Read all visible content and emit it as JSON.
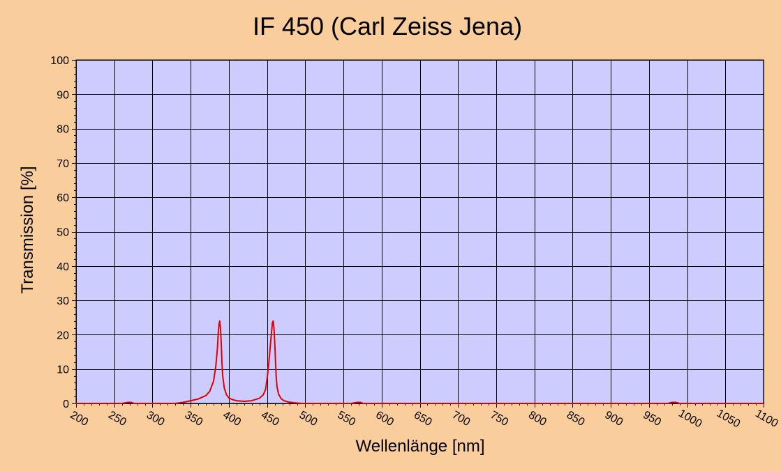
{
  "chart_data": {
    "type": "line",
    "title": "IF 450 (Carl Zeiss Jena)",
    "xlabel": "Wellenlänge [nm]",
    "ylabel": "Transmission [%]",
    "xlim": [
      200,
      1100
    ],
    "ylim": [
      0,
      100
    ],
    "x_ticks": [
      200,
      250,
      300,
      350,
      400,
      450,
      500,
      550,
      600,
      650,
      700,
      750,
      800,
      850,
      900,
      950,
      1000,
      1050,
      1100
    ],
    "x_tick_labels": [
      "200",
      "250",
      "300",
      "350",
      "400",
      "450",
      "500",
      "550",
      "600",
      "650",
      "700",
      "750",
      "800",
      "850",
      "900",
      "950",
      "1000",
      "1050",
      "1100"
    ],
    "y_ticks": [
      0,
      10,
      20,
      30,
      40,
      50,
      60,
      70,
      80,
      90,
      100
    ],
    "y_tick_labels": [
      "0",
      "10",
      "20",
      "30",
      "40",
      "50",
      "60",
      "70",
      "80",
      "90",
      "100"
    ],
    "grid": true,
    "plot_background": "#CCCCFF",
    "page_background": "#FACE9C",
    "grid_color": "#000000",
    "series": [
      {
        "color": "#E00000",
        "x": [
          200,
          260,
          268,
          272,
          276,
          330,
          340,
          350,
          360,
          370,
          375,
          380,
          383,
          385,
          386,
          387,
          388,
          389,
          390,
          391,
          392,
          394,
          397,
          400,
          405,
          410,
          420,
          430,
          440,
          445,
          448,
          450,
          452,
          454,
          456,
          457,
          458,
          459,
          460,
          461,
          462,
          463,
          465,
          468,
          472,
          478,
          485,
          495,
          560,
          568,
          572,
          576,
          975,
          980,
          985,
          990,
          1100
        ],
        "y": [
          0,
          0,
          0.3,
          0.3,
          0,
          0,
          0.3,
          0.8,
          1.3,
          2.3,
          3.5,
          6.5,
          11,
          16,
          20,
          23,
          24,
          22,
          18,
          12,
          8,
          4.5,
          2.5,
          1.6,
          1.1,
          0.8,
          0.6,
          0.8,
          1.5,
          2.5,
          4,
          7,
          11,
          16,
          21,
          23.5,
          24,
          22,
          18,
          13,
          8,
          5,
          2.8,
          1.5,
          0.8,
          0.4,
          0.2,
          0,
          0,
          0.3,
          0.3,
          0,
          0,
          0.3,
          0.3,
          0,
          0
        ]
      }
    ]
  }
}
